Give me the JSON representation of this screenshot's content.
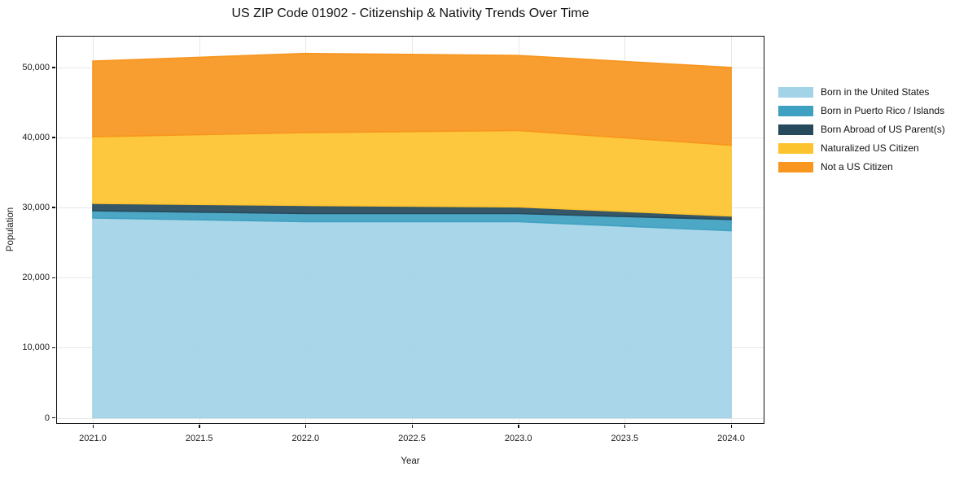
{
  "title": "US ZIP Code 01902 - Citizenship & Nativity Trends Over Time",
  "axes": {
    "x_title": "Year",
    "y_title": "Population"
  },
  "chart_data": {
    "type": "area",
    "stacked": true,
    "title": "US ZIP Code 01902 - Citizenship & Nativity Trends Over Time",
    "xlabel": "Year",
    "ylabel": "Population",
    "grid": true,
    "legend_position": "right-outside",
    "x": [
      2021,
      2022,
      2023,
      2024
    ],
    "x_ticks": [
      "2021.0",
      "2021.5",
      "2022.0",
      "2022.5",
      "2023.0",
      "2023.5",
      "2024.0"
    ],
    "y_ticks": [
      "0",
      "10,000",
      "20,000",
      "30,000",
      "40,000",
      "50,000"
    ],
    "y_tick_values": [
      0,
      10000,
      20000,
      30000,
      40000,
      50000
    ],
    "xlim": [
      2020.83,
      2024.15
    ],
    "ylim": [
      -800,
      54400
    ],
    "series": [
      {
        "key": "born-us",
        "name": "Born in the United States",
        "color": "#A3D3E6",
        "values": [
          28500,
          28000,
          28000,
          26700
        ]
      },
      {
        "key": "born-pr",
        "name": "Born in Puerto Rico / Islands",
        "color": "#3FA1C1",
        "values": [
          1050,
          1150,
          1150,
          1600
        ]
      },
      {
        "key": "born-abroad",
        "name": "Born Abroad of US Parent(s)",
        "color": "#264A5C",
        "values": [
          1050,
          1150,
          950,
          500
        ]
      },
      {
        "key": "naturalized",
        "name": "Naturalized US Citizen",
        "color": "#FDC32F",
        "values": [
          9500,
          10400,
          10900,
          10100
        ]
      },
      {
        "key": "not-citizen",
        "name": "Not a US Citizen",
        "color": "#F8961F",
        "values": [
          10800,
          11300,
          10700,
          11100
        ]
      }
    ],
    "stack_totals": [
      50900,
      52000,
      51700,
      50000
    ]
  }
}
